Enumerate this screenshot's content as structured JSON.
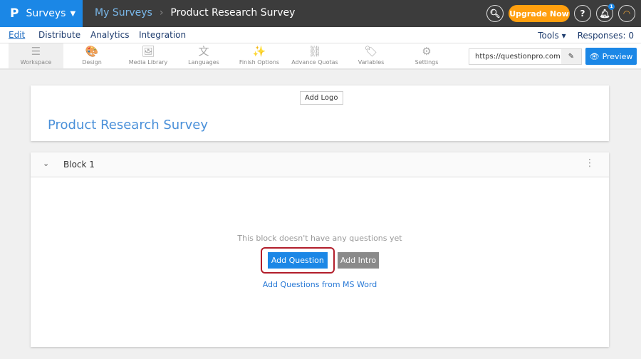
{
  "topbar": {
    "logo": "P",
    "app": "Surveys",
    "breadcrumb_parent": "My Surveys",
    "breadcrumb_current": "Product Research Survey",
    "upgrade": "Upgrade Now",
    "help": "?",
    "notifications": "1"
  },
  "nav": {
    "tabs": [
      "Edit",
      "Distribute",
      "Analytics",
      "Integration"
    ],
    "tools": "Tools ▾",
    "responses": "Responses: 0"
  },
  "toolbar": {
    "items": [
      {
        "label": "Workspace",
        "icon": "☰"
      },
      {
        "label": "Design",
        "icon": "🎨"
      },
      {
        "label": "Media Library",
        "icon": "🖼"
      },
      {
        "label": "Languages",
        "icon": "文"
      },
      {
        "label": "Finish Options",
        "icon": "✨"
      },
      {
        "label": "Advance Quotas",
        "icon": "⛓"
      },
      {
        "label": "Variables",
        "icon": "🏷"
      },
      {
        "label": "Settings",
        "icon": "⚙"
      }
    ],
    "url": "https://questionpro.com/t/A",
    "preview": "Preview"
  },
  "survey": {
    "add_logo": "Add Logo",
    "title": "Product Research Survey"
  },
  "block": {
    "name": "Block 1",
    "empty": "This block doesn't have any questions yet",
    "add_question": "Add Question",
    "add_intro": "Add Intro",
    "ms_word": "Add Questions from MS Word"
  },
  "colors": {
    "brand": "#1b87e6",
    "upgrade": "#ff9f0e",
    "highlight": "#b21e2b"
  }
}
